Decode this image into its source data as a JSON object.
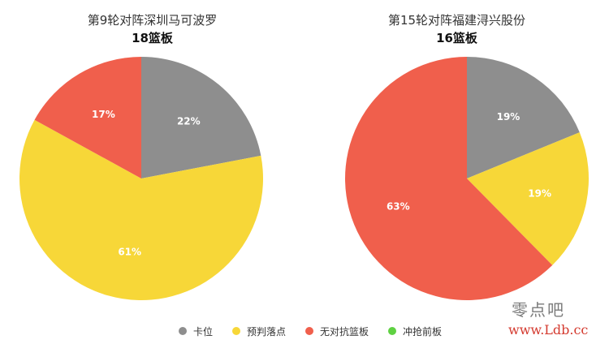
{
  "chart_data": [
    {
      "type": "pie",
      "title": "第9轮对阵深圳马可波罗",
      "subtitle": "18篮板",
      "slices": [
        {
          "name": "卡位",
          "value": 22,
          "label": "22%",
          "color": "#8e8e8e"
        },
        {
          "name": "预判落点",
          "value": 61,
          "label": "61%",
          "color": "#f7d738"
        },
        {
          "name": "无对抗篮板",
          "value": 17,
          "label": "17%",
          "color": "#f05f4c"
        }
      ]
    },
    {
      "type": "pie",
      "title": "第15轮对阵福建浔兴股份",
      "subtitle": "16篮板",
      "slices": [
        {
          "name": "卡位",
          "value": 19,
          "label": "19%",
          "color": "#8e8e8e"
        },
        {
          "name": "预判落点",
          "value": 19,
          "label": "19%",
          "color": "#f7d738"
        },
        {
          "name": "无对抗篮板",
          "value": 63,
          "label": "63%",
          "color": "#f05f4c"
        }
      ]
    }
  ],
  "legend": [
    {
      "label": "卡位",
      "color": "#8e8e8e"
    },
    {
      "label": "预判落点",
      "color": "#f7d738"
    },
    {
      "label": "无对抗篮板",
      "color": "#f05f4c"
    },
    {
      "label": "冲抢前板",
      "color": "#5fd142"
    }
  ],
  "watermark": {
    "cn": "零点吧",
    "url": "www.Ldb.cc"
  }
}
